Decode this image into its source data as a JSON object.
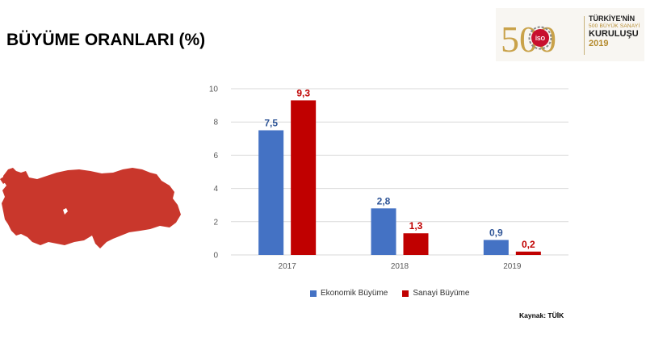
{
  "page": {
    "title": "BÜYÜME ORANLARI (%)",
    "source": "Kaynak: TÜİK"
  },
  "logo": {
    "number": "500",
    "emblem": "İSO",
    "line1": "TÜRKİYE'NİN",
    "line2": "500 BÜYÜK SANAYİ",
    "line3": "KURULUŞU",
    "year": "2019"
  },
  "map": {
    "icon": "turkey-map-icon",
    "color": "#c9372c"
  },
  "chart_data": {
    "type": "bar",
    "categories": [
      "2017",
      "2018",
      "2019"
    ],
    "series": [
      {
        "name": "Ekonomik Büyüme",
        "values": [
          7.5,
          2.8,
          0.9
        ],
        "labels": [
          "7,5",
          "2,8",
          "0,9"
        ],
        "color": "#4472c4",
        "label_color": "#2f5597"
      },
      {
        "name": "Sanayi Büyüme",
        "values": [
          9.3,
          1.3,
          0.2
        ],
        "labels": [
          "9,3",
          "1,3",
          "0,2"
        ],
        "color": "#c00000",
        "label_color": "#c00000"
      }
    ],
    "ylim": [
      0,
      10
    ],
    "yticks": [
      "0",
      "2",
      "4",
      "6",
      "8",
      "10"
    ],
    "grid": true,
    "legend": "bottom"
  }
}
